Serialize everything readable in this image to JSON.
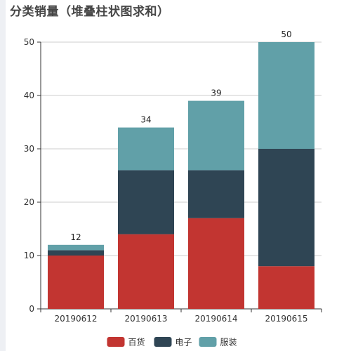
{
  "chart_data": {
    "type": "bar",
    "stacked": true,
    "title": "分类销量（堆叠柱状图求和）",
    "categories": [
      "20190612",
      "20190613",
      "20190614",
      "20190615"
    ],
    "series": [
      {
        "name": "百货",
        "color": "#c23531",
        "values": [
          10,
          14,
          17,
          8
        ]
      },
      {
        "name": "电子",
        "color": "#2f4554",
        "values": [
          1,
          12,
          9,
          22
        ]
      },
      {
        "name": "服装",
        "color": "#61a0a8",
        "values": [
          1,
          8,
          13,
          20
        ]
      }
    ],
    "totals": [
      12,
      34,
      39,
      50
    ],
    "ylim": [
      0,
      50
    ],
    "yticks": [
      0,
      10,
      20,
      30,
      40,
      50
    ],
    "grid": true,
    "legend_position": "bottom-center"
  }
}
